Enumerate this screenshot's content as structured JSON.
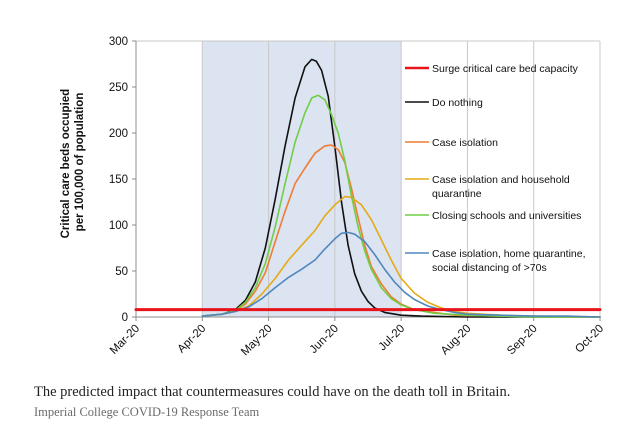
{
  "chart_data": {
    "type": "line",
    "title": "",
    "xlabel": "",
    "ylabel": "Critical care beds occupied per 100,000 of population",
    "ylabel_lines": [
      "Critical care beds occupied",
      "per 100,000 of population"
    ],
    "ylim": [
      0,
      300
    ],
    "yticks": [
      0,
      50,
      100,
      150,
      200,
      250,
      300
    ],
    "xlim": [
      "Mar-20",
      "Oct-20"
    ],
    "xticks": [
      "Mar-20",
      "Apr-20",
      "May-20",
      "Jun-20",
      "Jul-20",
      "Aug-20",
      "Sep-20",
      "Oct-20"
    ],
    "grid": "vertical",
    "legend_position": "right",
    "shaded_period": {
      "from_month": 1,
      "to_month": 4,
      "color": "#dce3f1"
    },
    "series": [
      {
        "name": "Surge critical care bed capacity",
        "color": "#e8141b",
        "width": 3,
        "points": [
          [
            0,
            8
          ],
          [
            7,
            8
          ]
        ]
      },
      {
        "name": "Do nothing",
        "color": "#111111",
        "width": 1.6,
        "points": [
          [
            1.0,
            1
          ],
          [
            1.3,
            3
          ],
          [
            1.5,
            8
          ],
          [
            1.65,
            18
          ],
          [
            1.8,
            38
          ],
          [
            1.95,
            75
          ],
          [
            2.1,
            128
          ],
          [
            2.25,
            186
          ],
          [
            2.4,
            238
          ],
          [
            2.55,
            272
          ],
          [
            2.65,
            280
          ],
          [
            2.72,
            278
          ],
          [
            2.8,
            268
          ],
          [
            2.9,
            240
          ],
          [
            3.0,
            185
          ],
          [
            3.1,
            125
          ],
          [
            3.2,
            78
          ],
          [
            3.3,
            47
          ],
          [
            3.4,
            28
          ],
          [
            3.5,
            17
          ],
          [
            3.6,
            10
          ],
          [
            3.75,
            5
          ],
          [
            4.0,
            2
          ],
          [
            4.3,
            1
          ],
          [
            5.0,
            0
          ],
          [
            7.0,
            0
          ]
        ]
      },
      {
        "name": "Case isolation",
        "color": "#ef7d33",
        "width": 1.6,
        "points": [
          [
            1.0,
            1
          ],
          [
            1.3,
            3
          ],
          [
            1.5,
            7
          ],
          [
            1.65,
            14
          ],
          [
            1.8,
            28
          ],
          [
            1.95,
            48
          ],
          [
            2.1,
            82
          ],
          [
            2.25,
            115
          ],
          [
            2.4,
            145
          ],
          [
            2.55,
            162
          ],
          [
            2.7,
            178
          ],
          [
            2.85,
            186
          ],
          [
            2.95,
            187
          ],
          [
            3.05,
            182
          ],
          [
            3.15,
            168
          ],
          [
            3.25,
            140
          ],
          [
            3.35,
            108
          ],
          [
            3.45,
            78
          ],
          [
            3.55,
            55
          ],
          [
            3.7,
            36
          ],
          [
            3.85,
            22
          ],
          [
            4.0,
            14
          ],
          [
            4.2,
            8
          ],
          [
            4.5,
            5
          ],
          [
            4.8,
            2
          ],
          [
            5.5,
            1
          ],
          [
            6.5,
            0
          ],
          [
            7.0,
            0
          ]
        ]
      },
      {
        "name": "Case isolation and household quarantine",
        "color": "#e5aa17",
        "width": 1.6,
        "points": [
          [
            1.0,
            1
          ],
          [
            1.3,
            3
          ],
          [
            1.5,
            6
          ],
          [
            1.7,
            12
          ],
          [
            1.9,
            25
          ],
          [
            2.1,
            42
          ],
          [
            2.3,
            62
          ],
          [
            2.5,
            78
          ],
          [
            2.7,
            94
          ],
          [
            2.85,
            110
          ],
          [
            3.0,
            122
          ],
          [
            3.15,
            131
          ],
          [
            3.25,
            130
          ],
          [
            3.4,
            122
          ],
          [
            3.55,
            106
          ],
          [
            3.7,
            84
          ],
          [
            3.85,
            62
          ],
          [
            4.0,
            42
          ],
          [
            4.2,
            26
          ],
          [
            4.4,
            16
          ],
          [
            4.6,
            10
          ],
          [
            4.8,
            6
          ],
          [
            5.0,
            4
          ],
          [
            5.5,
            2
          ],
          [
            6.0,
            1
          ],
          [
            7.0,
            0
          ]
        ]
      },
      {
        "name": "Closing schools and universities",
        "color": "#6fce46",
        "width": 1.6,
        "points": [
          [
            1.0,
            1
          ],
          [
            1.3,
            3
          ],
          [
            1.5,
            7
          ],
          [
            1.65,
            16
          ],
          [
            1.8,
            32
          ],
          [
            1.95,
            58
          ],
          [
            2.1,
            98
          ],
          [
            2.25,
            145
          ],
          [
            2.4,
            190
          ],
          [
            2.55,
            222
          ],
          [
            2.65,
            238
          ],
          [
            2.75,
            241
          ],
          [
            2.85,
            236
          ],
          [
            2.95,
            220
          ],
          [
            3.05,
            200
          ],
          [
            3.15,
            170
          ],
          [
            3.25,
            132
          ],
          [
            3.35,
            98
          ],
          [
            3.45,
            72
          ],
          [
            3.55,
            52
          ],
          [
            3.7,
            32
          ],
          [
            3.85,
            20
          ],
          [
            4.0,
            13
          ],
          [
            4.2,
            8
          ],
          [
            4.5,
            4
          ],
          [
            5.0,
            2
          ],
          [
            6.0,
            0
          ],
          [
            7.0,
            0
          ]
        ]
      },
      {
        "name": "Case isolation, home quarantine, social distancing of >70s",
        "color": "#4f87be",
        "width": 1.6,
        "points": [
          [
            1.0,
            1
          ],
          [
            1.3,
            3
          ],
          [
            1.5,
            6
          ],
          [
            1.7,
            11
          ],
          [
            1.9,
            20
          ],
          [
            2.1,
            32
          ],
          [
            2.3,
            43
          ],
          [
            2.5,
            52
          ],
          [
            2.7,
            62
          ],
          [
            2.85,
            74
          ],
          [
            3.0,
            85
          ],
          [
            3.1,
            91
          ],
          [
            3.2,
            92
          ],
          [
            3.3,
            90
          ],
          [
            3.45,
            82
          ],
          [
            3.6,
            68
          ],
          [
            3.75,
            52
          ],
          [
            3.9,
            38
          ],
          [
            4.05,
            27
          ],
          [
            4.2,
            19
          ],
          [
            4.4,
            12
          ],
          [
            4.6,
            8
          ],
          [
            4.8,
            5
          ],
          [
            5.0,
            3
          ],
          [
            5.5,
            2
          ],
          [
            6.0,
            1
          ],
          [
            6.5,
            1
          ],
          [
            7.0,
            0
          ]
        ]
      }
    ],
    "legend": [
      [
        "Surge critical care bed capacity"
      ],
      [
        "Do nothing"
      ],
      [
        "Case isolation"
      ],
      [
        "Case isolation and household",
        "quarantine"
      ],
      [
        "Closing schools and universities"
      ],
      [
        "Case isolation, home quarantine,",
        "social distancing of >70s"
      ]
    ]
  },
  "caption": "The predicted impact that countermeasures could have on the death toll in Britain.",
  "credit": "Imperial College COVID-19 Response Team"
}
